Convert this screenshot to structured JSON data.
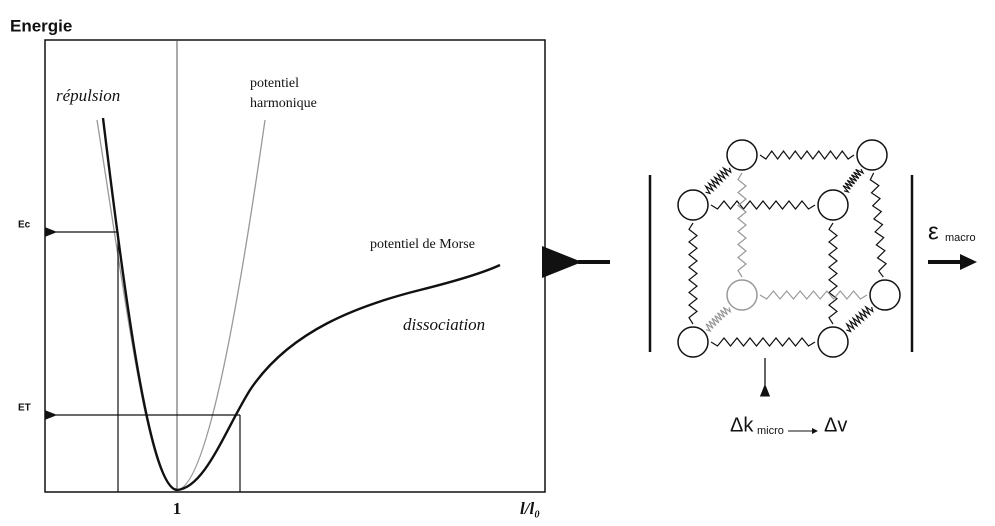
{
  "plot": {
    "y_axis_label": "Energie",
    "x_axis_label": "l/l₀",
    "x_tick": "1",
    "energy_levels": [
      "Ec",
      "ET"
    ],
    "annotations": [
      "répulsion",
      "potentiel",
      "harmonique",
      "potentiel de Morse",
      "dissociation"
    ]
  },
  "lattice": {
    "strain_symbol": "ε",
    "strain_subscript": "macro",
    "delta_k": "Δk",
    "delta_k_subscript": "micro",
    "delta_v": "Δv"
  }
}
